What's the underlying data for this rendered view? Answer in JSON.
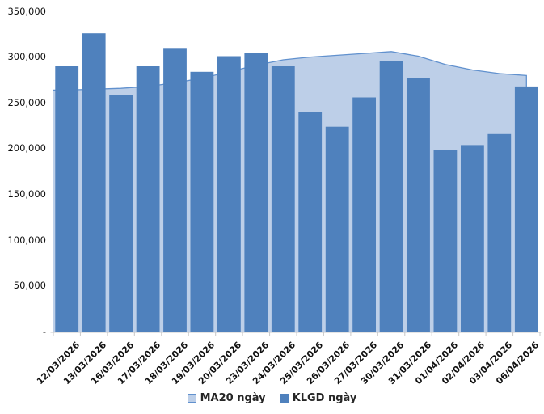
{
  "chart_data": {
    "type": "combo-area-bar",
    "title": "",
    "xlabel": "",
    "ylabel": "",
    "grid": false,
    "legend_position": "bottom-center",
    "ylim": [
      0,
      350000
    ],
    "ytick_step": 50000,
    "ytick_labels": [
      "-",
      "50,000",
      "100,000",
      "150,000",
      "200,000",
      "250,000",
      "300,000",
      "350,000"
    ],
    "axis_color": "#C8C8C8",
    "text_color": "#111111",
    "categories": [
      "12/03/2026",
      "13/03/2026",
      "16/03/2026",
      "17/03/2026",
      "18/03/2026",
      "19/03/2026",
      "20/03/2026",
      "23/03/2026",
      "24/03/2026",
      "25/03/2026",
      "26/03/2026",
      "27/03/2026",
      "30/03/2026",
      "31/03/2026",
      "01/04/2026",
      "02/04/2026",
      "03/04/2026",
      "06/04/2026"
    ],
    "series": [
      {
        "name": "MA20 ngày",
        "type": "area",
        "fill": "#BDCFE8",
        "line": "#6191CE",
        "values": [
          264000,
          265000,
          266000,
          268000,
          272000,
          277000,
          284000,
          291000,
          297000,
          300000,
          302000,
          304000,
          306000,
          301000,
          292000,
          286000,
          282000,
          280000
        ]
      },
      {
        "name": "KLGD ngày",
        "type": "bar",
        "fill": "#4F81BD",
        "values": [
          290000,
          326000,
          259000,
          290000,
          310000,
          284000,
          301000,
          305000,
          290000,
          240000,
          224000,
          256000,
          296000,
          277000,
          199000,
          204000,
          216000,
          268000
        ]
      }
    ]
  },
  "legend": {
    "items": [
      {
        "label": "MA20 ngày",
        "swatch_fill": "#BDCFE8",
        "swatch_border": "#6191CE"
      },
      {
        "label": "KLGD ngày",
        "swatch_fill": "#4F81BD",
        "swatch_border": "#4F81BD"
      }
    ]
  }
}
